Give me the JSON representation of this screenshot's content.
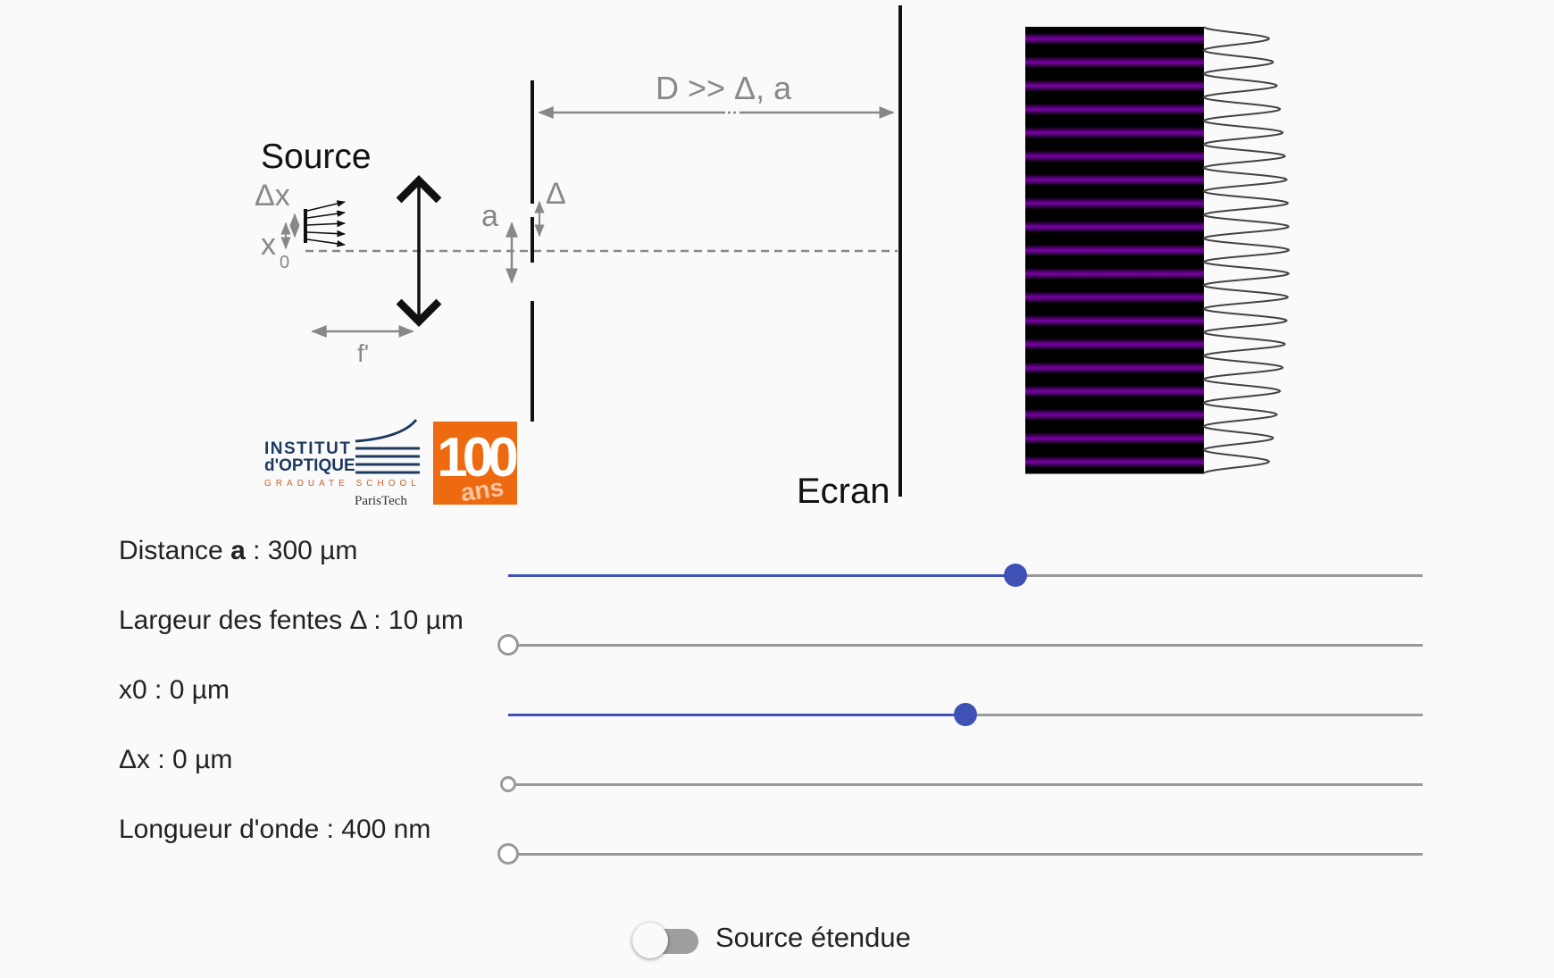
{
  "diagram": {
    "source_label": "Source",
    "delta_x_label": "Δx",
    "x0_label": "x",
    "x0_sub": "0",
    "focal_label": "f'",
    "a_label": "a",
    "delta_label": "Δ",
    "distance_label": "D >> Δ, a",
    "screen_label": "Ecran"
  },
  "logo": {
    "line1": "INSTITUT",
    "line2": "d'OPTIQUE",
    "line3": "GRADUATE SCHOOL",
    "line4": "ParisTech",
    "badge_number": "100",
    "badge_text": "ans",
    "badge_color": "#ee6a10",
    "brand_color": "#1c3a5e"
  },
  "fringes": {
    "fringe_color": "#7a00a8",
    "count": 19
  },
  "controls": [
    {
      "label_prefix": "Distance ",
      "label_bold": "a",
      "label_suffix": " : 300 µm",
      "fraction": 0.555
    },
    {
      "label_prefix": "Largeur des fentes Δ : 10 µm",
      "label_bold": "",
      "label_suffix": "",
      "fraction": 0.0
    },
    {
      "label_prefix": "x0 : 0 µm",
      "label_bold": "",
      "label_suffix": "",
      "fraction": 0.5
    },
    {
      "label_prefix": "Δx : 0 µm",
      "label_bold": "",
      "label_suffix": "",
      "fraction": 0.0
    },
    {
      "label_prefix": "Longueur d'onde : 400 nm",
      "label_bold": "",
      "label_suffix": "",
      "fraction": 0.0
    }
  ],
  "toggle": {
    "label": "Source étendue",
    "on": false
  },
  "colors": {
    "accent": "#3f51b5",
    "track": "#999999"
  }
}
